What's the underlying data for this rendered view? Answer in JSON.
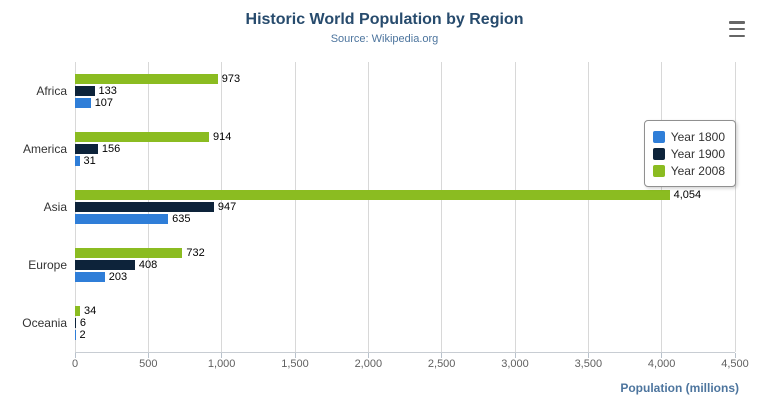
{
  "title": "Historic World Population by Region",
  "subtitle": "Source: Wikipedia.org",
  "export_menu": "context-menu",
  "chart_data": {
    "type": "bar",
    "orientation": "horizontal",
    "title": "Historic World Population by Region",
    "subtitle": "Source: Wikipedia.org",
    "categories": [
      "Africa",
      "America",
      "Asia",
      "Europe",
      "Oceania"
    ],
    "series": [
      {
        "name": "Year 1800",
        "color": "#2f7ed8",
        "values": [
          107,
          31,
          635,
          203,
          2
        ]
      },
      {
        "name": "Year 1900",
        "color": "#0d233a",
        "values": [
          133,
          156,
          947,
          408,
          6
        ]
      },
      {
        "name": "Year 2008",
        "color": "#8bbc21",
        "values": [
          973,
          914,
          4054,
          732,
          34
        ]
      }
    ],
    "series_visual_order_top_to_bottom": [
      "Year 2008",
      "Year 1900",
      "Year 1800"
    ],
    "xlabel": "Population (millions)",
    "ylabel": "",
    "xlim": [
      0,
      4500
    ],
    "xticks": [
      0,
      500,
      1000,
      1500,
      2000,
      2500,
      3000,
      3500,
      4000,
      4500
    ],
    "xtick_labels": [
      "0",
      "500",
      "1,000",
      "1,500",
      "2,000",
      "2,500",
      "3,000",
      "3,500",
      "4,000",
      "4,500"
    ],
    "grid": true,
    "legend_position": "right-floating",
    "legend": [
      "Year 1800",
      "Year 1900",
      "Year 2008"
    ]
  }
}
